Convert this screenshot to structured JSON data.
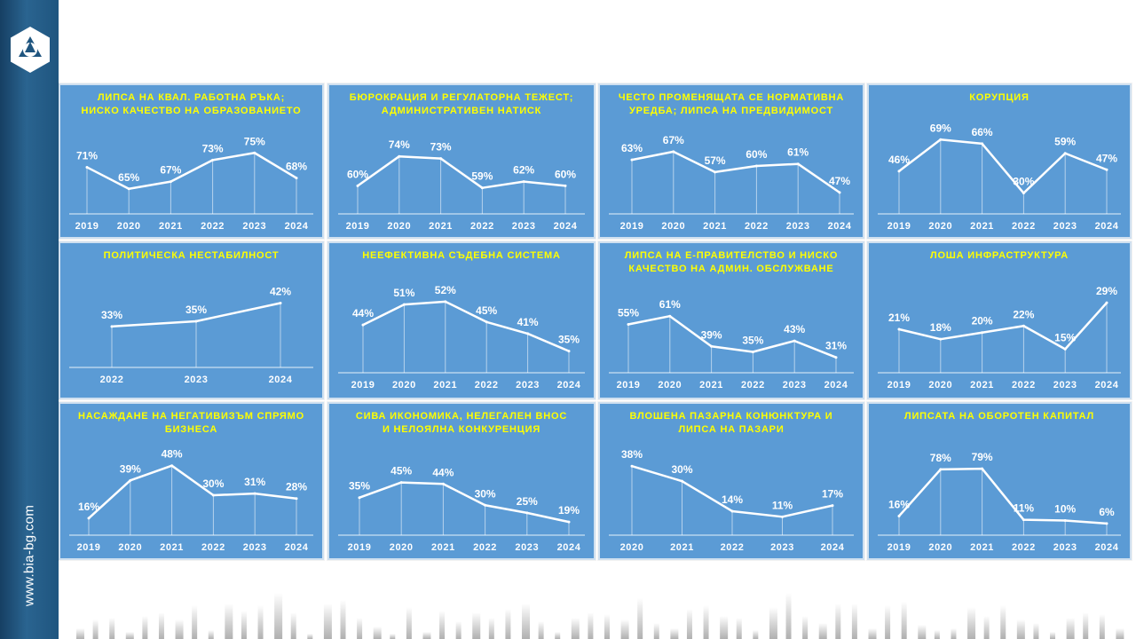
{
  "site": {
    "url": "www.bia-bg.com"
  },
  "icons": {
    "logo": "bia-hexagon-logo-icon"
  },
  "colors": {
    "panel": "#5b9bd5",
    "title": "#ffff00",
    "line": "#ffffff",
    "sidebar": "#1f557f"
  },
  "chart_data": [
    {
      "type": "line",
      "title": "ЛИПСА НА КВАЛ. РАБОТНА РЪКА;\nНИСКО КАЧЕСТВО НА ОБРАЗОВАНИЕТО",
      "categories": [
        "2019",
        "2020",
        "2021",
        "2022",
        "2023",
        "2024"
      ],
      "values": [
        71,
        65,
        67,
        73,
        75,
        68
      ],
      "labels": [
        "71%",
        "65%",
        "67%",
        "73%",
        "75%",
        "68%"
      ]
    },
    {
      "type": "line",
      "title": "БЮРОКРАЦИЯ И РЕГУЛАТОРНА ТЕЖЕСТ;\nАДМИНИСТРАТИВЕН НАТИСК",
      "categories": [
        "2019",
        "2020",
        "2021",
        "2022",
        "2023",
        "2024"
      ],
      "values": [
        60,
        74,
        73,
        59,
        62,
        60
      ],
      "labels": [
        "60%",
        "74%",
        "73%",
        "59%",
        "62%",
        "60%"
      ]
    },
    {
      "type": "line",
      "title": "ЧЕСТО ПРОМЕНЯЩАТА СЕ НОРМАТИВНА\nУРЕДБА; ЛИПСА НА ПРЕДВИДИМОСТ",
      "categories": [
        "2019",
        "2020",
        "2021",
        "2022",
        "2023",
        "2024"
      ],
      "values": [
        63,
        67,
        57,
        60,
        61,
        47
      ],
      "labels": [
        "63%",
        "67%",
        "57%",
        "60%",
        "61%",
        "47%"
      ]
    },
    {
      "type": "line",
      "title": "КОРУПЦИЯ",
      "categories": [
        "2019",
        "2020",
        "2021",
        "2022",
        "2023",
        "2024"
      ],
      "values": [
        46,
        69,
        66,
        30,
        59,
        47
      ],
      "labels": [
        "46%",
        "69%",
        "66%",
        "30%",
        "59%",
        "47%"
      ]
    },
    {
      "type": "line",
      "title": "ПОЛИТИЧЕСКА НЕСТАБИЛНОСТ",
      "categories": [
        "2022",
        "2023",
        "2024"
      ],
      "values": [
        33,
        35,
        42
      ],
      "labels": [
        "33%",
        "35%",
        "42%"
      ]
    },
    {
      "type": "line",
      "title": "НЕЕФЕКТИВНА СЪДЕБНА СИСТЕМА",
      "categories": [
        "2019",
        "2020",
        "2021",
        "2022",
        "2023",
        "2024"
      ],
      "values": [
        44,
        51,
        52,
        45,
        41,
        35
      ],
      "labels": [
        "44%",
        "51%",
        "52%",
        "45%",
        "41%",
        "35%"
      ]
    },
    {
      "type": "line",
      "title": "ЛИПСА НА Е-ПРАВИТЕЛСТВО И НИСКО\nКАЧЕСТВО НА АДМИН. ОБСЛУЖВАНЕ",
      "categories": [
        "2019",
        "2020",
        "2021",
        "2022",
        "2023",
        "2024"
      ],
      "values": [
        55,
        61,
        39,
        35,
        43,
        31
      ],
      "labels": [
        "55%",
        "61%",
        "39%",
        "35%",
        "43%",
        "31%"
      ]
    },
    {
      "type": "line",
      "title": "ЛОША ИНФРАСТРУКТУРА",
      "categories": [
        "2019",
        "2020",
        "2021",
        "2022",
        "2023",
        "2024"
      ],
      "values": [
        21,
        18,
        20,
        22,
        15,
        29
      ],
      "labels": [
        "21%",
        "18%",
        "20%",
        "22%",
        "15%",
        "29%"
      ]
    },
    {
      "type": "line",
      "title": "НАСАЖДАНЕ НА НЕГАТИВИЗЪМ СПРЯМО\nБИЗНЕСА",
      "categories": [
        "2019",
        "2020",
        "2021",
        "2022",
        "2023",
        "2024"
      ],
      "values": [
        16,
        39,
        48,
        30,
        31,
        28
      ],
      "labels": [
        "16%",
        "39%",
        "48%",
        "30%",
        "31%",
        "28%"
      ]
    },
    {
      "type": "line",
      "title": "СИВА ИКОНОМИКА, НЕЛЕГАЛЕН ВНОС\nИ НЕЛОЯЛНА КОНКУРЕНЦИЯ",
      "categories": [
        "2019",
        "2020",
        "2021",
        "2022",
        "2023",
        "2024"
      ],
      "values": [
        35,
        45,
        44,
        30,
        25,
        19
      ],
      "labels": [
        "35%",
        "45%",
        "44%",
        "30%",
        "25%",
        "19%"
      ]
    },
    {
      "type": "line",
      "title": "ВЛОШЕНА ПАЗАРНА КОНЮНКТУРА И\nЛИПСА НА ПАЗАРИ",
      "categories": [
        "2020",
        "2021",
        "2022",
        "2023",
        "2024"
      ],
      "values": [
        38,
        30,
        14,
        11,
        17
      ],
      "labels": [
        "38%",
        "30%",
        "14%",
        "11%",
        "17%"
      ]
    },
    {
      "type": "line",
      "title": "ЛИПСАТА НА ОБОРОТЕН КАПИТАЛ",
      "categories": [
        "2019",
        "2020",
        "2021",
        "2022",
        "2023",
        "2024"
      ],
      "values": [
        16,
        78,
        79,
        11,
        10,
        6
      ],
      "labels": [
        "16%",
        "78%",
        "79%",
        "11%",
        "10%",
        "6%"
      ]
    }
  ]
}
